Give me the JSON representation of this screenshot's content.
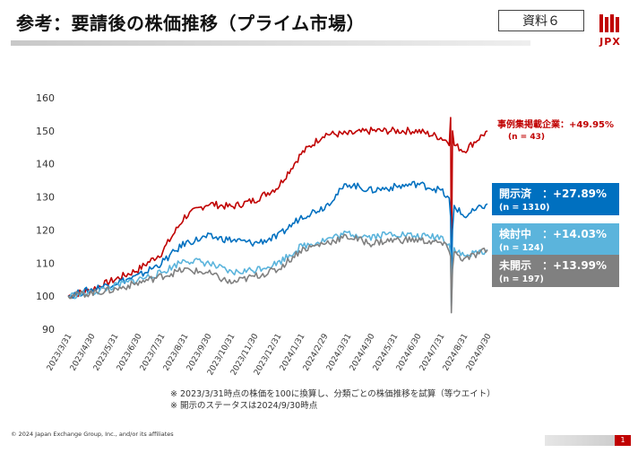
{
  "slide": {
    "title": "参考：要請後の株価推移（プライム市場）",
    "doc_label": "資料６",
    "logo_text": "JPX",
    "notes": [
      "※ 2023/3/31時点の株価を100に換算し、分類ごとの株価推移を試算（等ウエイト）",
      "※ 開示のステータスは2024/9/30時点"
    ],
    "copyright": "© 2024 Japan Exchange Group, Inc., and/or its affiliates",
    "page_number": "1"
  },
  "chart_data": {
    "type": "line",
    "ylim": [
      90,
      160
    ],
    "yticks": [
      90,
      100,
      110,
      120,
      130,
      140,
      150,
      160
    ],
    "x": [
      "2023/3/31",
      "2023/4/30",
      "2023/5/31",
      "2023/6/30",
      "2023/7/31",
      "2023/8/31",
      "2023/9/30",
      "2023/10/31",
      "2023/11/30",
      "2023/12/31",
      "2024/1/31",
      "2024/2/29",
      "2024/3/31",
      "2024/4/30",
      "2024/5/31",
      "2024/6/30",
      "2024/7/31",
      "2024/8/31",
      "2024/9/30"
    ],
    "grid": false,
    "legend": "right",
    "series": [
      {
        "name": "事例集掲載企業：+49.95%",
        "sub": "(n = 43)",
        "color": "#c00000",
        "label_style": "text",
        "values": [
          100,
          102,
          105,
          108,
          113,
          124,
          128,
          127,
          129,
          133,
          143,
          149,
          149,
          150,
          150,
          150,
          148,
          144,
          149.95
        ],
        "dip": [
          104,
          154
        ]
      },
      {
        "name": "開示済　：+27.89%",
        "sub": "(n = 1310)",
        "color": "#0070c0",
        "label_style": "box",
        "values": [
          100,
          102,
          104,
          106,
          110,
          116,
          118,
          117,
          116,
          118,
          124,
          127,
          134,
          132,
          133,
          134,
          132,
          124,
          127.89
        ],
        "dip": [
          104,
          124
        ]
      },
      {
        "name": "検討中　：+14.03%",
        "sub": "(n = 124)",
        "color": "#5bb4dc",
        "label_style": "box",
        "values": [
          100,
          101,
          103,
          105,
          107,
          111,
          110,
          107,
          108,
          110,
          115,
          117,
          119,
          118,
          119,
          118,
          118,
          112,
          114.03
        ],
        "dip": [
          97,
          113
        ]
      },
      {
        "name": "未開示　：+13.99%",
        "sub": "(n = 197)",
        "color": "#808080",
        "label_style": "box",
        "values": [
          100,
          101,
          102,
          104,
          106,
          108,
          107,
          104,
          106,
          108,
          114,
          116,
          118,
          116,
          117,
          117,
          116,
          111,
          113.99
        ],
        "dip": [
          95,
          112
        ]
      }
    ]
  }
}
